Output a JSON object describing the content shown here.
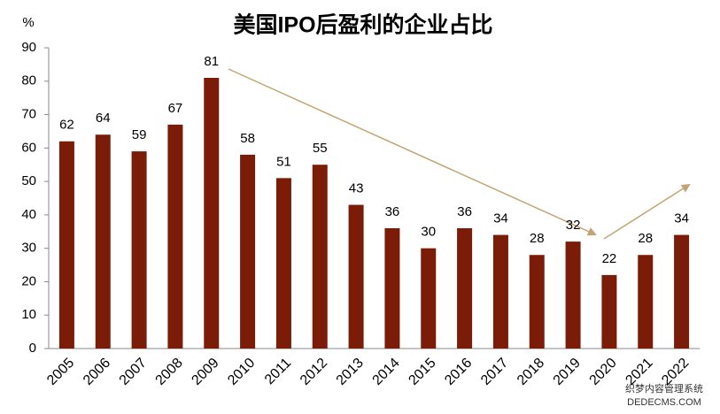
{
  "chart_data": {
    "type": "bar",
    "title": "美国IPO后盈利的企业占比",
    "y_label": "%",
    "categories": [
      "2005",
      "2006",
      "2007",
      "2008",
      "2009",
      "2010",
      "2011",
      "2012",
      "2013",
      "2014",
      "2015",
      "2016",
      "2017",
      "2018",
      "2019",
      "2020",
      "2021",
      "2022"
    ],
    "values": [
      62,
      64,
      59,
      67,
      81,
      58,
      51,
      55,
      43,
      36,
      30,
      36,
      34,
      28,
      32,
      22,
      28,
      34
    ],
    "color": "#7a1c07",
    "ylim": [
      0,
      90
    ],
    "yticks": [
      0,
      10,
      20,
      30,
      40,
      50,
      60,
      70,
      80,
      90
    ],
    "grid": false,
    "watermark": [
      "织梦内容管理系统",
      "DEDECMS.COM"
    ]
  }
}
